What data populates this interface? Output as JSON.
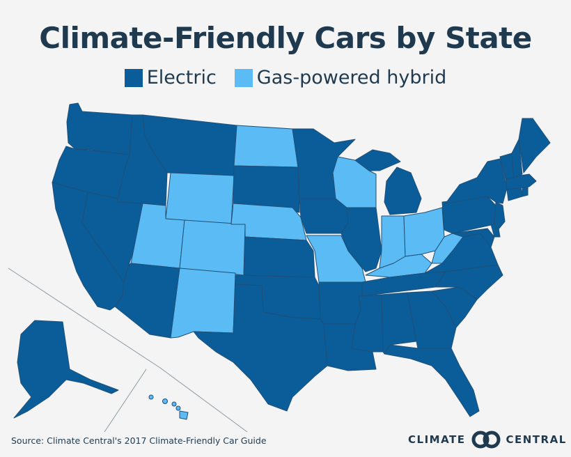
{
  "title": "Climate-Friendly Cars by State",
  "legend": {
    "items": [
      {
        "label": "Electric",
        "color": "#0b5d99"
      },
      {
        "label": "Gas-powered hybrid",
        "color": "#5bbcf5"
      }
    ]
  },
  "colors": {
    "electric": "#0b5d99",
    "hybrid": "#5bbcf5",
    "border": "#1f4f78",
    "background": "#f4f4f4"
  },
  "states_hybrid": [
    "North Dakota",
    "Wyoming",
    "Utah",
    "Colorado",
    "Nebraska",
    "New Mexico",
    "Missouri",
    "Wisconsin",
    "Indiana",
    "Ohio",
    "Kentucky",
    "West Virginia",
    "Hawaii"
  ],
  "states_electric": [
    "Washington",
    "Oregon",
    "California",
    "Nevada",
    "Idaho",
    "Montana",
    "Arizona",
    "South Dakota",
    "Kansas",
    "Oklahoma",
    "Texas",
    "Minnesota",
    "Iowa",
    "Arkansas",
    "Louisiana",
    "Illinois",
    "Michigan",
    "Tennessee",
    "Mississippi",
    "Alabama",
    "Georgia",
    "Florida",
    "South Carolina",
    "North Carolina",
    "Virginia",
    "Maryland",
    "Delaware",
    "Pennsylvania",
    "New Jersey",
    "New York",
    "Connecticut",
    "Rhode Island",
    "Massachusetts",
    "Vermont",
    "New Hampshire",
    "Maine",
    "Alaska"
  ],
  "source": "Source: Climate Central's 2017 Climate-Friendly Car Guide",
  "logo": {
    "left_text": "CLIMATE",
    "right_text": "CENTRAL",
    "icon": "interlocking-rings-icon"
  }
}
